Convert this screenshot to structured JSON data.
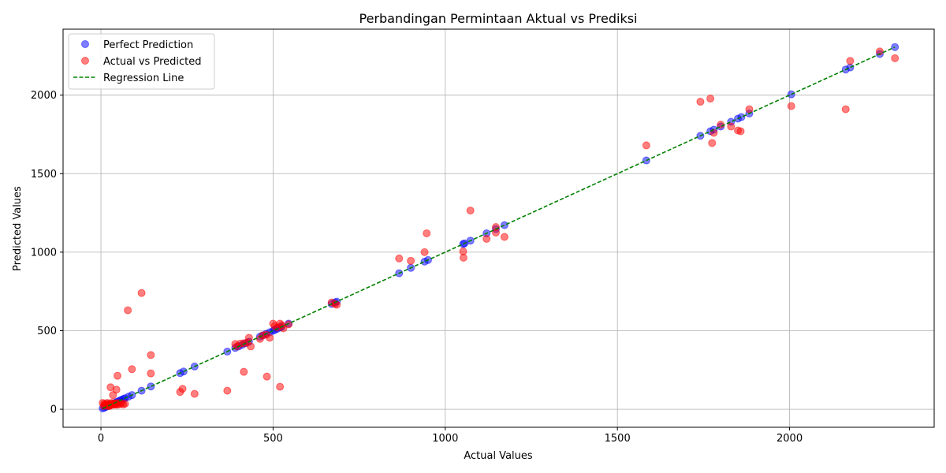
{
  "chart_data": {
    "type": "scatter",
    "title": "Perbandingan Permintaan Aktual vs Prediksi",
    "xlabel": "Actual Values",
    "ylabel": "Predicted Values",
    "xlim": [
      -110,
      2420
    ],
    "ylim": [
      -115,
      2420
    ],
    "xticks": [
      0,
      500,
      1000,
      1500,
      2000
    ],
    "yticks": [
      0,
      500,
      1000,
      1500,
      2000
    ],
    "grid": true,
    "legend_position": "top-left",
    "colors": {
      "perfect": "#0000ff",
      "actual": "#ff0000",
      "regression": "#008000"
    },
    "series": [
      {
        "name": "Perfect Prediction",
        "x": [
          5,
          10,
          15,
          20,
          25,
          30,
          35,
          40,
          45,
          50,
          55,
          60,
          65,
          70,
          80,
          90,
          118,
          145,
          230,
          240,
          272,
          367,
          390,
          400,
          410,
          420,
          430,
          462,
          470,
          480,
          490,
          500,
          505,
          512,
          520,
          525,
          545,
          670,
          680,
          685,
          866,
          900,
          940,
          950,
          1052,
          1056,
          1073,
          1120,
          1147,
          1172,
          1584,
          1741,
          1770,
          1780,
          1800,
          1830,
          1850,
          1860,
          1883,
          2005,
          2163,
          2176,
          2262,
          2306
        ],
        "y": [
          5,
          10,
          15,
          20,
          25,
          30,
          35,
          40,
          45,
          50,
          55,
          60,
          65,
          70,
          80,
          90,
          118,
          145,
          230,
          240,
          272,
          367,
          390,
          400,
          410,
          420,
          430,
          462,
          470,
          480,
          490,
          500,
          505,
          512,
          520,
          525,
          545,
          670,
          680,
          685,
          866,
          900,
          940,
          950,
          1052,
          1056,
          1073,
          1120,
          1147,
          1172,
          1584,
          1741,
          1770,
          1780,
          1800,
          1830,
          1850,
          1860,
          1883,
          2005,
          2163,
          2176,
          2262,
          2306
        ]
      },
      {
        "name": "Actual vs Predicted",
        "x": [
          5,
          8,
          10,
          12,
          15,
          18,
          20,
          22,
          25,
          28,
          30,
          33,
          35,
          38,
          40,
          42,
          45,
          48,
          50,
          55,
          60,
          65,
          70,
          28,
          35,
          45,
          30,
          25,
          118,
          78,
          145,
          90,
          145,
          48,
          230,
          237,
          272,
          367,
          390,
          395,
          405,
          415,
          425,
          430,
          435,
          415,
          462,
          470,
          480,
          490,
          500,
          505,
          512,
          520,
          525,
          530,
          545,
          482,
          520,
          670,
          680,
          685,
          866,
          900,
          940,
          946,
          1052,
          1053,
          1073,
          1120,
          1147,
          1147,
          1172,
          1584,
          1741,
          1770,
          1775,
          1780,
          1800,
          1830,
          1850,
          1858,
          1883,
          2005,
          2163,
          2176,
          2262,
          2306
        ],
        "y": [
          40,
          20,
          35,
          30,
          25,
          40,
          20,
          35,
          30,
          25,
          40,
          30,
          35,
          28,
          38,
          30,
          35,
          28,
          40,
          32,
          38,
          30,
          35,
          140,
          90,
          125,
          30,
          20,
          740,
          630,
          345,
          255,
          228,
          213,
          110,
          130,
          98,
          118,
          415,
          400,
          418,
          420,
          425,
          455,
          400,
          238,
          448,
          470,
          475,
          455,
          545,
          530,
          520,
          545,
          535,
          515,
          540,
          208,
          143,
          680,
          670,
          665,
          960,
          945,
          1000,
          1120,
          1005,
          965,
          1265,
          1085,
          1160,
          1125,
          1097,
          1680,
          1958,
          1978,
          1695,
          1760,
          1812,
          1800,
          1775,
          1770,
          1910,
          1930,
          1910,
          2218,
          2278,
          2235
        ]
      }
    ],
    "regression": {
      "name": "Regression Line",
      "x": [
        5,
        2306
      ],
      "y": [
        5,
        2306
      ]
    }
  }
}
